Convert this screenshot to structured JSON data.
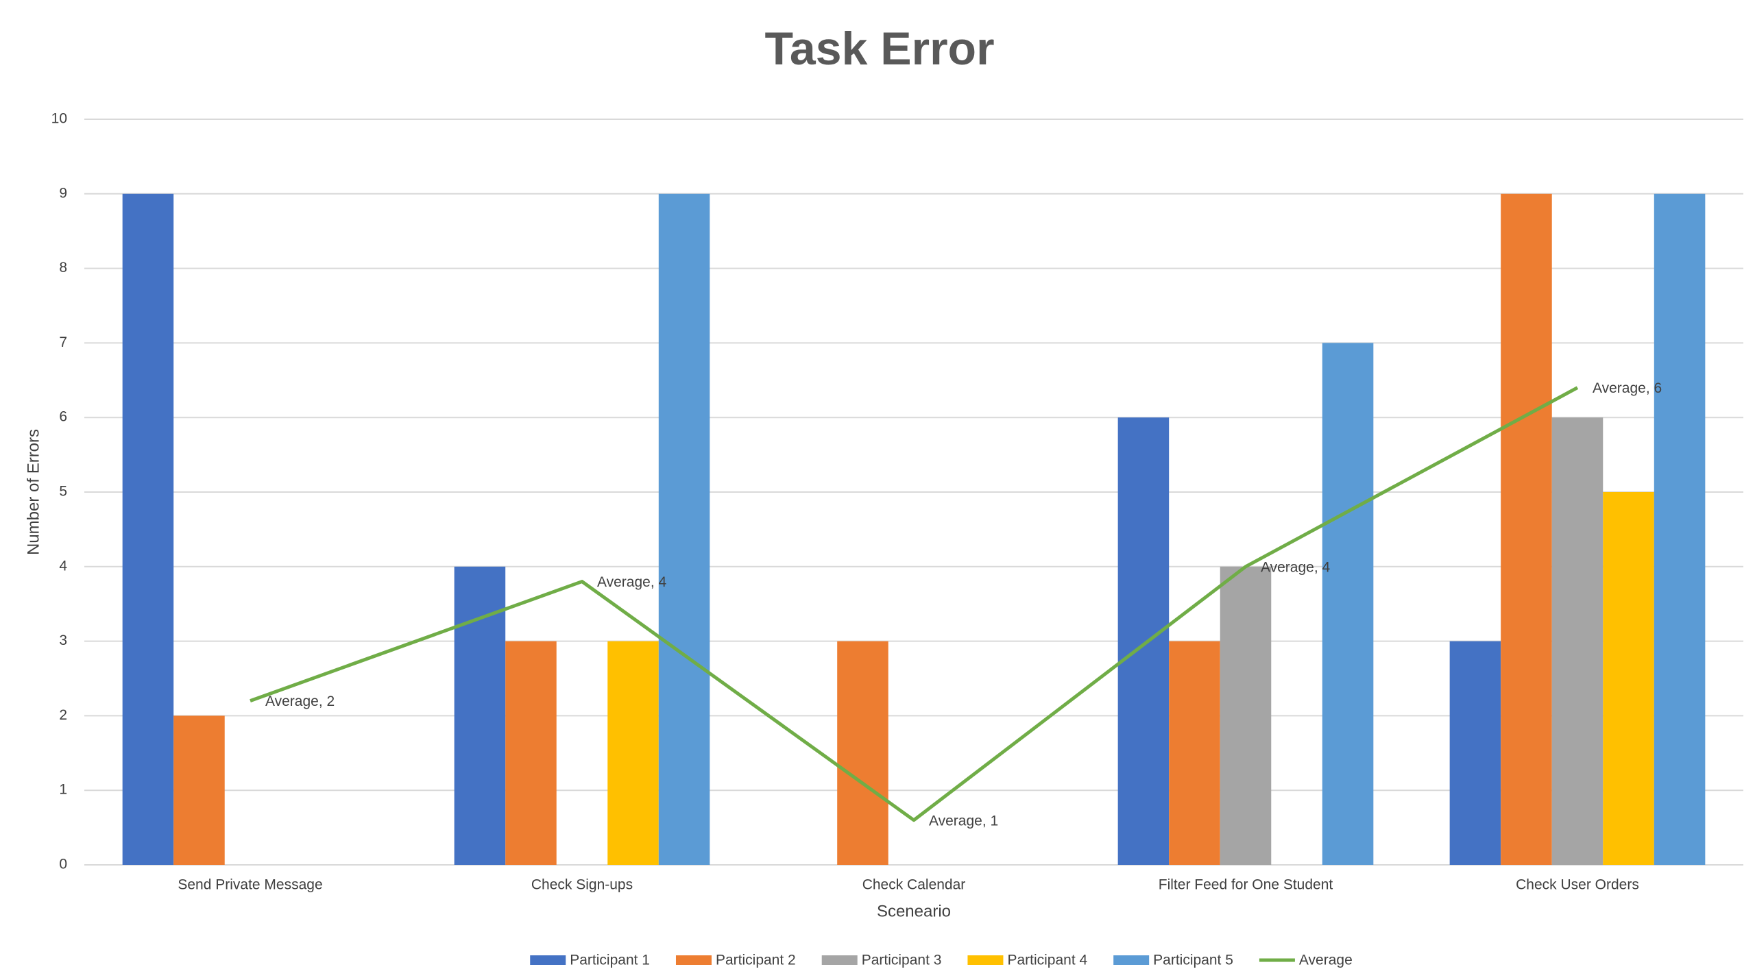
{
  "chart_data": {
    "type": "bar",
    "title": "Task Error",
    "x_label": "Sceneario",
    "y_label": "Number of Errors",
    "categories": [
      "Send Private Message",
      "Check Sign-ups",
      "Check Calendar",
      "Filter Feed for One Student",
      "Check User Orders"
    ],
    "series": [
      {
        "name": "Participant 1",
        "color": "#4472c4",
        "values": [
          9,
          4,
          0,
          6,
          3
        ]
      },
      {
        "name": "Participant 2",
        "color": "#ed7d31",
        "values": [
          2,
          3,
          3,
          3,
          9
        ]
      },
      {
        "name": "Participant 3",
        "color": "#a5a5a5",
        "values": [
          0,
          0,
          0,
          4,
          6
        ]
      },
      {
        "name": "Participant 4",
        "color": "#ffc000",
        "values": [
          0,
          3,
          0,
          0,
          5
        ]
      },
      {
        "name": "Participant 5",
        "color": "#5b9bd5",
        "values": [
          0,
          9,
          0,
          7,
          9
        ]
      },
      {
        "name": "Average",
        "color": "#70ad47",
        "type": "line",
        "values": [
          2.2,
          3.8,
          0.6,
          4,
          6.4
        ],
        "value_labels": [
          "Average, 2",
          "Average, 4",
          "Average, 1",
          "Average, 4",
          "Average, 6"
        ]
      }
    ],
    "ylim": [
      0,
      10
    ],
    "yticks": [
      0,
      1,
      2,
      3,
      4,
      5,
      6,
      7,
      8,
      9,
      10
    ],
    "grid": true,
    "legend": "bottom"
  }
}
